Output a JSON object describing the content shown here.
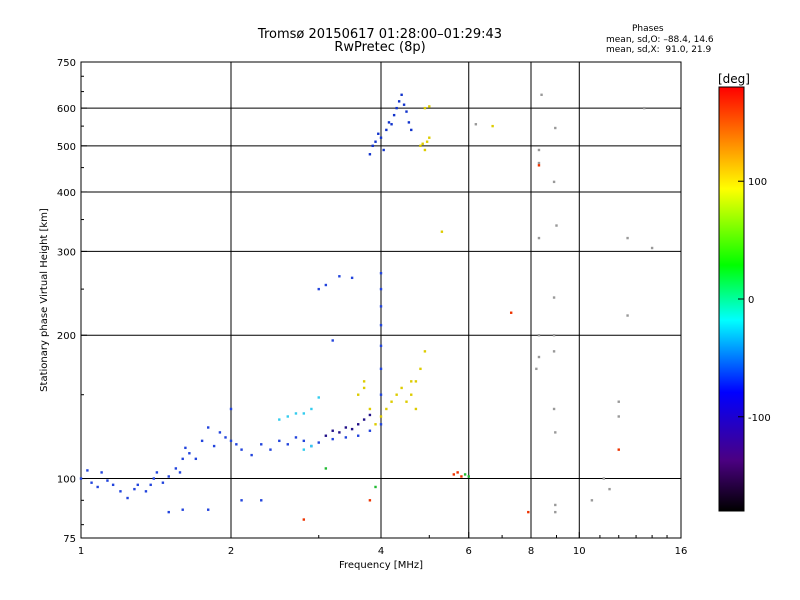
{
  "header": {
    "title_line1": "Tromsø 20150617 01:28:00–01:29:43",
    "title_line2": "RwPretec (8p)",
    "stats_heading": "Phases",
    "stats_o": "mean, sd,O: –88.4, 14.6",
    "stats_x": "mean, sd,X:  91.0, 21.9"
  },
  "chart_data": {
    "type": "scatter",
    "xlabel": "Frequency [MHz]",
    "ylabel": "Stationary phase Virtual Height [km]",
    "x_scale": "log",
    "y_scale": "log",
    "xlim": [
      1,
      16
    ],
    "ylim": [
      75,
      750
    ],
    "x_ticks": [
      1,
      2,
      4,
      6,
      8,
      10,
      16
    ],
    "y_ticks": [
      75,
      100,
      200,
      300,
      400,
      500,
      600,
      750
    ],
    "grid": true,
    "colorbar": {
      "label": "[deg]",
      "range": [
        -180,
        180
      ],
      "ticks": [
        100,
        0,
        -100
      ],
      "colors": [
        "#000000",
        "#4b0082",
        "#0000ff",
        "#00ffff",
        "#00ff00",
        "#ffff00",
        "#ff0000"
      ]
    },
    "series": [
      {
        "color": "#2244dd",
        "points": [
          [
            1.0,
            100
          ],
          [
            1.03,
            104
          ],
          [
            1.05,
            98
          ],
          [
            1.08,
            96
          ],
          [
            1.1,
            103
          ],
          [
            1.13,
            99
          ],
          [
            1.16,
            97
          ],
          [
            1.2,
            94
          ],
          [
            1.24,
            91
          ],
          [
            1.28,
            95
          ],
          [
            1.3,
            97
          ],
          [
            1.35,
            94
          ],
          [
            1.38,
            97
          ],
          [
            1.4,
            100
          ],
          [
            1.42,
            103
          ],
          [
            1.46,
            98
          ],
          [
            1.5,
            101
          ],
          [
            1.55,
            105
          ],
          [
            1.58,
            103
          ],
          [
            1.6,
            110
          ],
          [
            1.62,
            116
          ],
          [
            1.65,
            113
          ],
          [
            1.7,
            110
          ],
          [
            1.75,
            120
          ],
          [
            1.8,
            128
          ],
          [
            1.85,
            117
          ],
          [
            1.9,
            125
          ],
          [
            1.95,
            122
          ],
          [
            2.0,
            120
          ],
          [
            2.0,
            140
          ],
          [
            2.05,
            118
          ],
          [
            2.1,
            115
          ],
          [
            2.2,
            112
          ],
          [
            2.3,
            118
          ],
          [
            2.4,
            115
          ],
          [
            2.5,
            120
          ],
          [
            2.6,
            118
          ],
          [
            2.7,
            122
          ],
          [
            2.8,
            120
          ],
          [
            2.9,
            117
          ],
          [
            3.0,
            119
          ],
          [
            3.2,
            121
          ],
          [
            3.4,
            122
          ],
          [
            3.6,
            123
          ],
          [
            3.8,
            126
          ],
          [
            4.0,
            130
          ],
          [
            4.0,
            150
          ],
          [
            4.0,
            170
          ],
          [
            4.0,
            190
          ],
          [
            4.0,
            210
          ],
          [
            4.0,
            230
          ],
          [
            4.0,
            250
          ],
          [
            4.0,
            270
          ],
          [
            1.5,
            85
          ],
          [
            1.6,
            86
          ],
          [
            1.8,
            86
          ],
          [
            2.1,
            90
          ],
          [
            2.3,
            90
          ],
          [
            3.0,
            250
          ],
          [
            3.1,
            255
          ],
          [
            3.2,
            195
          ],
          [
            3.3,
            266
          ],
          [
            3.5,
            264
          ]
        ]
      },
      {
        "color": "#33ccee",
        "points": [
          [
            2.5,
            133
          ],
          [
            2.6,
            135
          ],
          [
            2.7,
            137
          ],
          [
            2.8,
            137
          ],
          [
            2.9,
            140
          ],
          [
            3.0,
            148
          ],
          [
            2.8,
            115
          ],
          [
            2.9,
            117
          ]
        ]
      },
      {
        "color": "#221188",
        "points": [
          [
            3.1,
            123
          ],
          [
            3.2,
            126
          ],
          [
            3.3,
            125
          ],
          [
            3.4,
            128
          ],
          [
            3.5,
            127
          ],
          [
            3.6,
            130
          ],
          [
            3.7,
            133
          ],
          [
            3.8,
            136
          ]
        ]
      },
      {
        "color": "#ddcc00",
        "points": [
          [
            3.6,
            150
          ],
          [
            3.7,
            155
          ],
          [
            3.8,
            140
          ],
          [
            3.9,
            130
          ],
          [
            4.0,
            135
          ],
          [
            4.1,
            140
          ],
          [
            4.2,
            145
          ],
          [
            4.3,
            150
          ],
          [
            4.4,
            155
          ],
          [
            4.5,
            145
          ],
          [
            4.6,
            150
          ],
          [
            4.7,
            160
          ],
          [
            4.8,
            170
          ],
          [
            4.9,
            185
          ],
          [
            4.7,
            140
          ],
          [
            4.6,
            160
          ],
          [
            3.7,
            160
          ]
        ]
      },
      {
        "color": "#1133cc",
        "points": [
          [
            3.8,
            480
          ],
          [
            3.85,
            500
          ],
          [
            3.9,
            510
          ],
          [
            3.95,
            530
          ],
          [
            4.0,
            520
          ],
          [
            4.05,
            490
          ],
          [
            4.1,
            540
          ],
          [
            4.15,
            560
          ],
          [
            4.2,
            555
          ],
          [
            4.25,
            580
          ],
          [
            4.3,
            600
          ],
          [
            4.35,
            620
          ],
          [
            4.4,
            640
          ],
          [
            4.45,
            610
          ],
          [
            4.5,
            590
          ],
          [
            4.55,
            560
          ],
          [
            4.6,
            540
          ]
        ]
      },
      {
        "color": "#ddcc00",
        "points": [
          [
            4.8,
            500
          ],
          [
            4.85,
            505
          ],
          [
            4.9,
            490
          ],
          [
            4.95,
            510
          ],
          [
            5.0,
            520
          ],
          [
            4.9,
            600
          ],
          [
            5.0,
            605
          ],
          [
            6.7,
            550
          ],
          [
            5.3,
            330
          ]
        ]
      },
      {
        "color": "#999999",
        "points": [
          [
            6.2,
            555
          ],
          [
            8.3,
            490
          ],
          [
            8.3,
            320
          ],
          [
            8.9,
            420
          ],
          [
            8.95,
            545
          ],
          [
            12.5,
            320
          ],
          [
            14.0,
            305
          ],
          [
            13.5,
            600
          ],
          [
            12.5,
            220
          ],
          [
            8.9,
            240
          ],
          [
            8.9,
            200
          ],
          [
            8.9,
            185
          ],
          [
            8.9,
            140
          ],
          [
            8.95,
            125
          ],
          [
            8.95,
            88
          ],
          [
            8.95,
            85
          ],
          [
            10.6,
            90
          ],
          [
            11.5,
            95
          ],
          [
            12.0,
            135
          ],
          [
            12.0,
            145
          ],
          [
            11.2,
            100
          ],
          [
            8.3,
            200
          ],
          [
            8.3,
            180
          ],
          [
            8.2,
            170
          ],
          [
            8.3,
            460
          ],
          [
            8.4,
            640
          ],
          [
            9.0,
            340
          ]
        ]
      },
      {
        "color": "#ee3300",
        "points": [
          [
            5.6,
            102
          ],
          [
            5.7,
            103
          ],
          [
            5.8,
            101
          ],
          [
            7.3,
            223
          ],
          [
            7.9,
            85
          ],
          [
            8.3,
            455
          ],
          [
            3.8,
            90
          ],
          [
            2.8,
            82
          ],
          [
            12.0,
            115
          ]
        ]
      },
      {
        "color": "#22bb33",
        "points": [
          [
            5.9,
            102
          ],
          [
            6.0,
            101
          ],
          [
            3.9,
            96
          ],
          [
            3.1,
            105
          ]
        ]
      }
    ]
  }
}
